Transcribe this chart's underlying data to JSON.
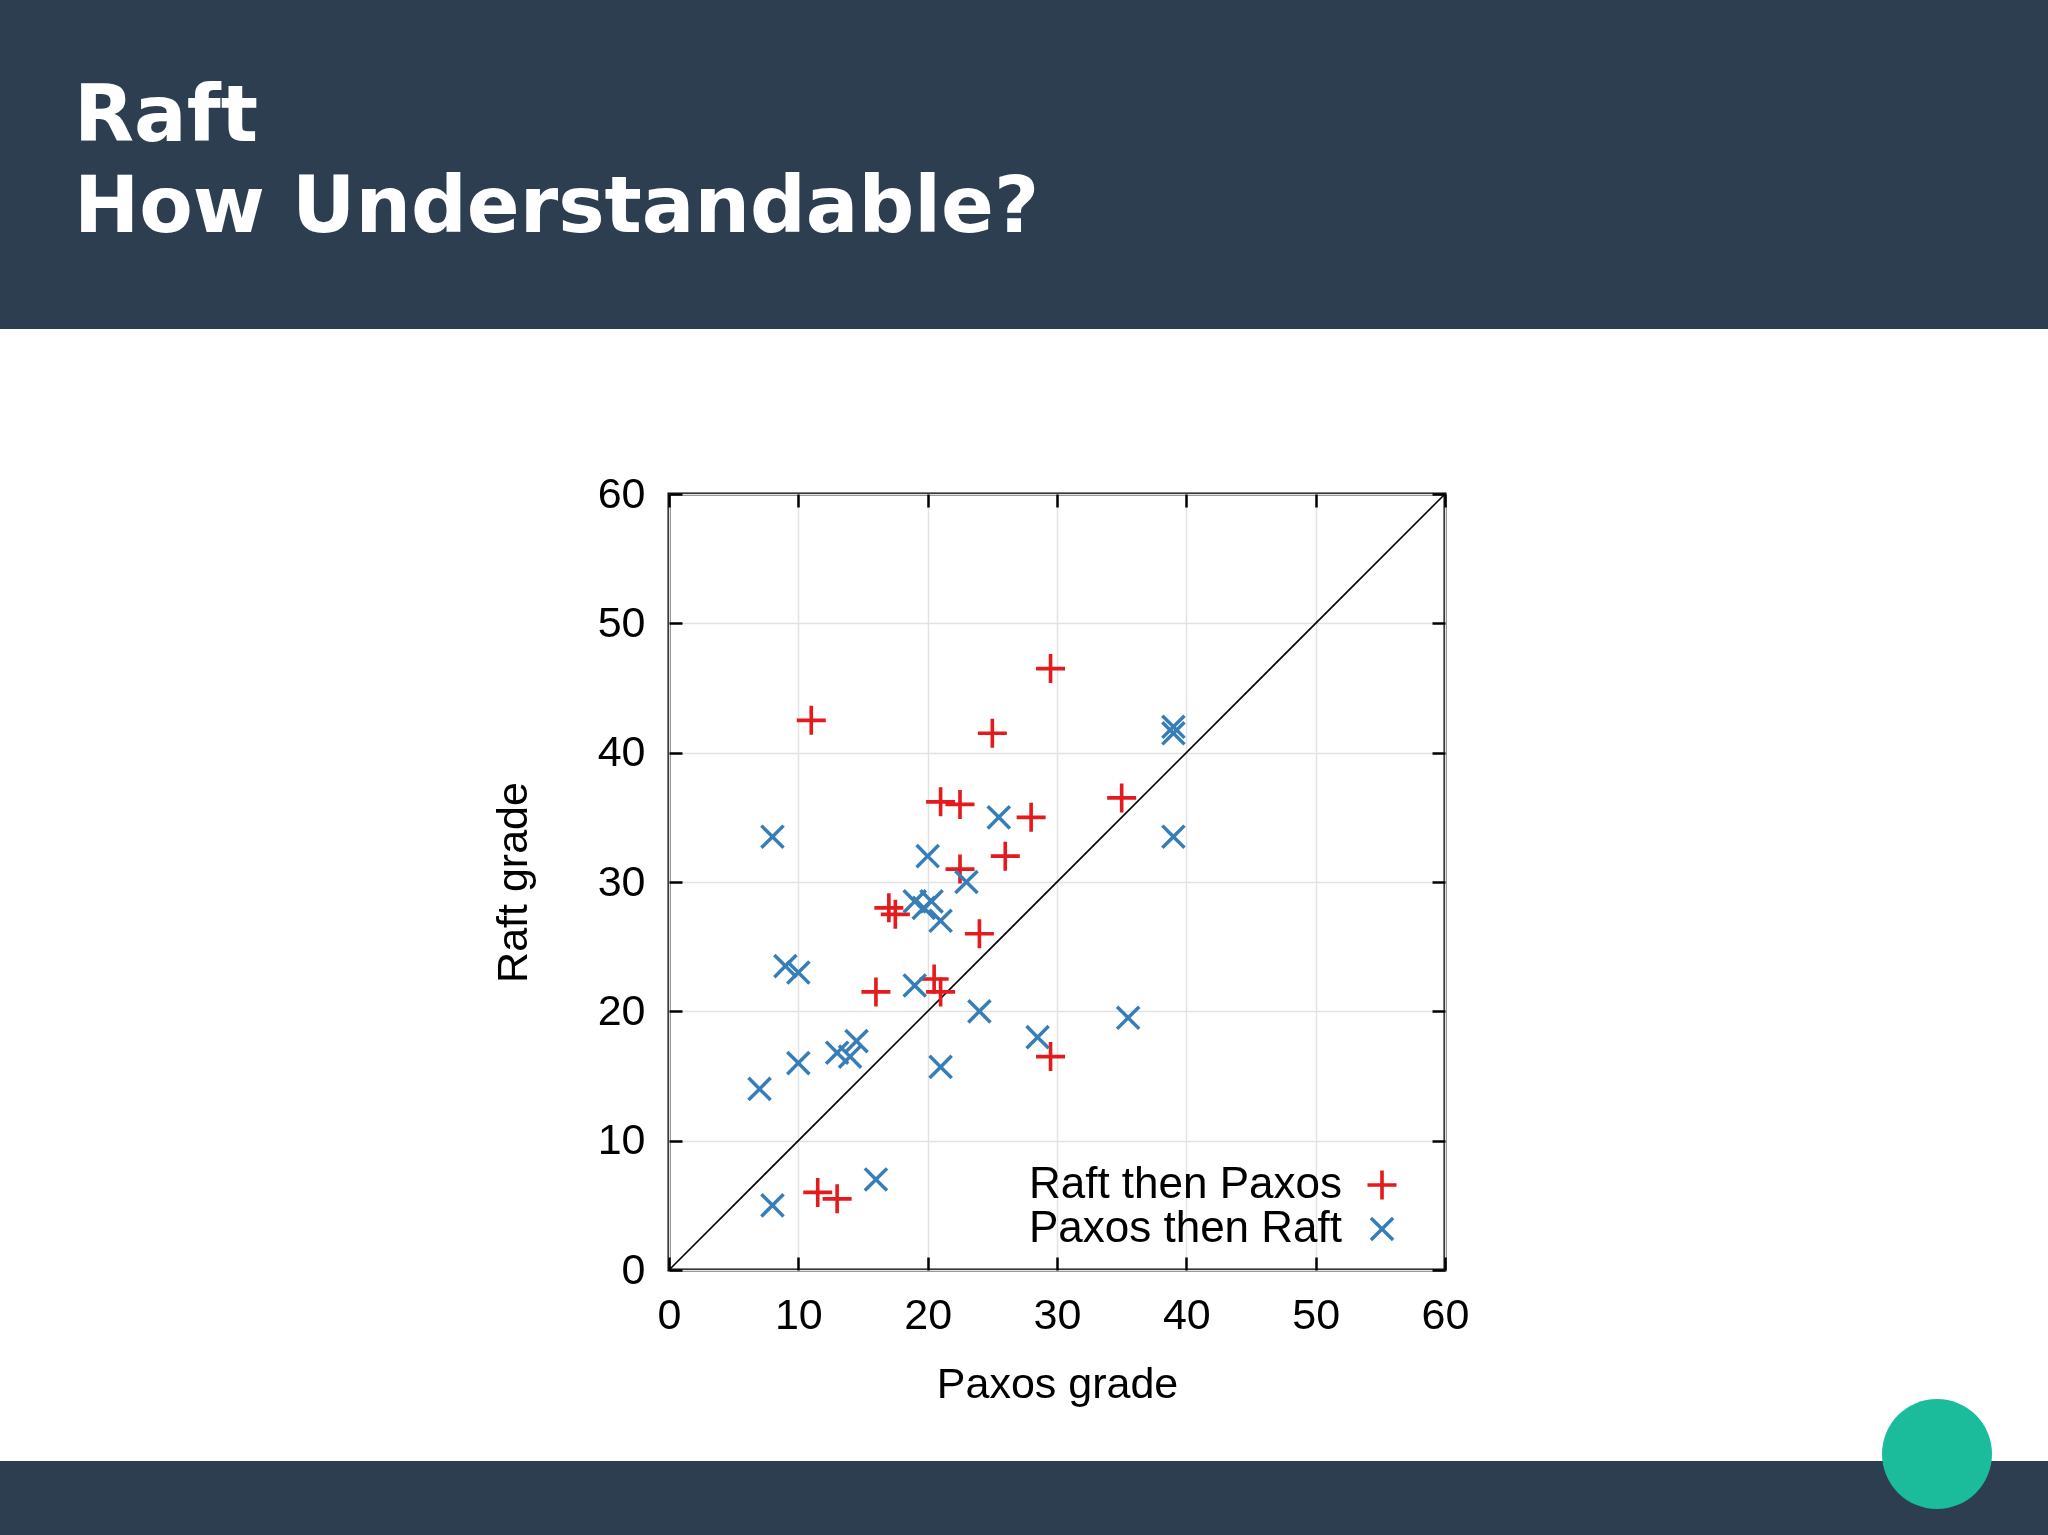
{
  "chart_data": {
    "type": "scatter",
    "title": "Raft",
    "subtitle": "How Understandable?",
    "xlabel": "Paxos grade",
    "ylabel": "Raft grade",
    "xlim": [
      0,
      60
    ],
    "ylim": [
      0,
      60
    ],
    "xticks": [
      0,
      10,
      20,
      30,
      40,
      50,
      60
    ],
    "yticks": [
      0,
      10,
      20,
      30,
      40,
      50,
      60
    ],
    "grid": true,
    "legend": "bottom right",
    "series": [
      {
        "name": "Raft then Paxos",
        "color": "#e41a1c",
        "marker": "cross",
        "x": [
          11,
          29.5,
          25,
          21,
          22.5,
          35,
          28,
          26,
          22.5,
          17,
          17.5,
          24,
          16,
          20.5,
          21,
          29.5,
          11.5,
          13
        ],
        "values": [
          42.5,
          46.5,
          41.5,
          36.2,
          36,
          36.5,
          35,
          32,
          31,
          28,
          27.5,
          26,
          21.5,
          22.5,
          21.5,
          16.5,
          6,
          5.5
        ]
      },
      {
        "name": "Paxos then Raft",
        "color": "#377eb8",
        "marker": "x",
        "x": [
          8,
          25.5,
          20,
          23,
          19,
          20.3,
          19.7,
          21,
          9,
          10,
          19,
          24,
          10,
          13,
          14,
          14.5,
          21,
          7,
          28.5,
          35.5,
          39,
          39,
          39,
          16,
          8
        ],
        "values": [
          33.5,
          35,
          32,
          30,
          28.5,
          28.5,
          28,
          27,
          23.5,
          23,
          22,
          20,
          16,
          16.8,
          16.5,
          17.7,
          15.7,
          14,
          18,
          19.5,
          42,
          41.5,
          33.5,
          7,
          5
        ]
      },
      {
        "type": "line",
        "color": "#000000",
        "line_style": "solid",
        "x": [
          0,
          60
        ],
        "values": [
          0,
          60
        ]
      }
    ]
  }
}
